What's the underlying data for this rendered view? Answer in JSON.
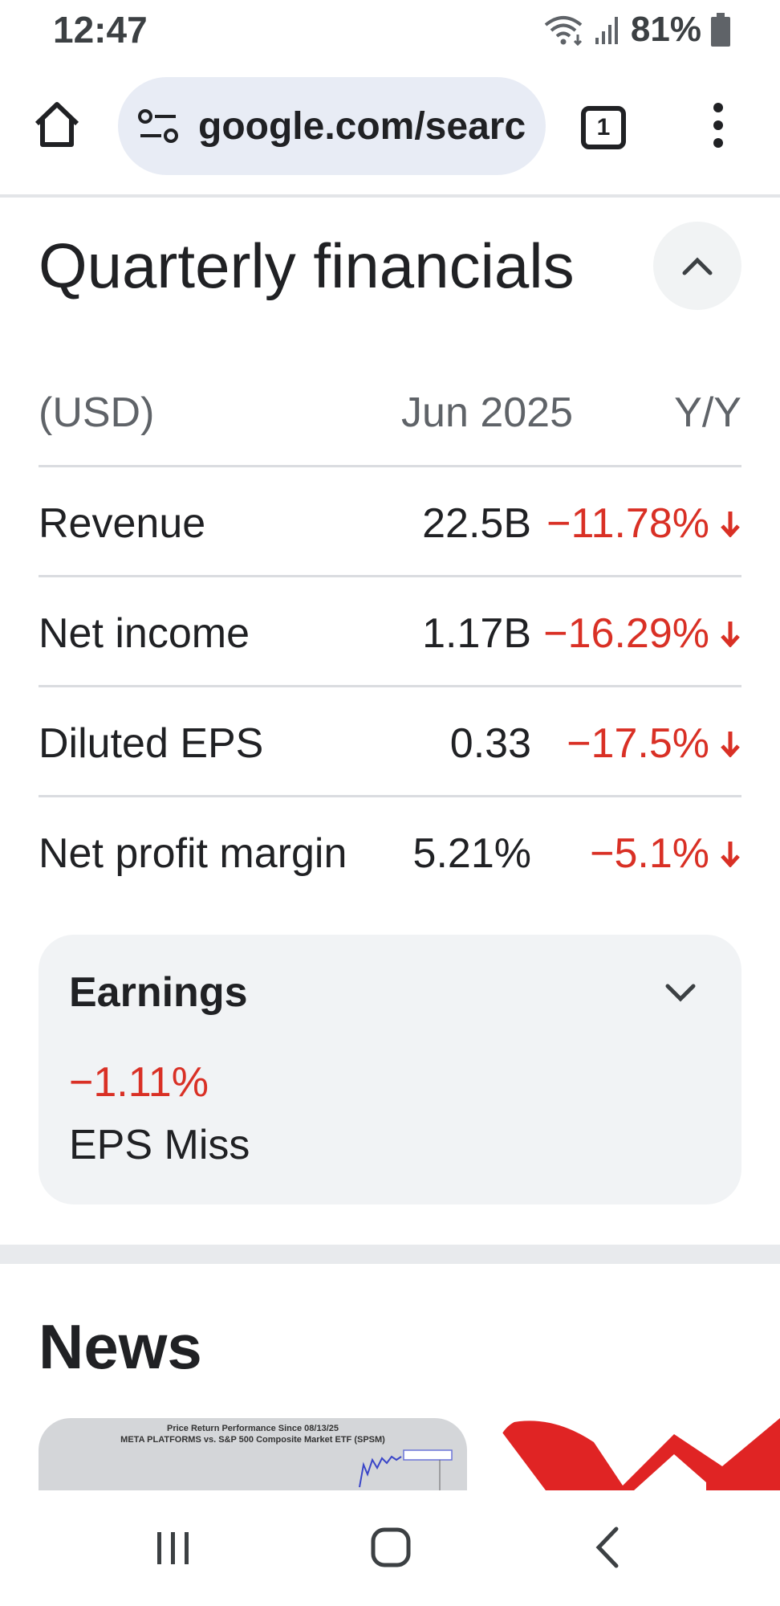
{
  "status_bar": {
    "time": "12:47",
    "battery_percent": "81%",
    "icons": [
      "wifi-icon",
      "signal-icon",
      "battery-icon"
    ]
  },
  "browser": {
    "url": "google.com/search",
    "tab_count": "1",
    "icons": [
      "home-icon",
      "site-info-icon",
      "tabs-icon",
      "more-vert-icon"
    ]
  },
  "financials": {
    "title": "Quarterly financials",
    "header": {
      "unit": "(USD)",
      "period": "Jun 2025",
      "change": "Y/Y"
    },
    "rows": [
      {
        "label": "Revenue",
        "value": "22.5B",
        "change": "−11.78%"
      },
      {
        "label": "Net income",
        "value": "1.17B",
        "change": "−16.29%"
      },
      {
        "label": "Diluted EPS",
        "value": "0.33",
        "change": "−17.5%"
      },
      {
        "label": "Net profit margin",
        "value": "5.21%",
        "change": "−5.1%"
      }
    ],
    "colors": {
      "negative": "#d93025"
    }
  },
  "earnings": {
    "title": "Earnings",
    "change": "−1.11%",
    "status": "EPS Miss"
  },
  "news": {
    "title": "News",
    "cards": [
      {
        "caption_line1": "Price Return Performance Since 08/13/25",
        "caption_line2": "META PLATFORMS vs. S&P 500 Composite Market ETF (SPSM)"
      }
    ]
  }
}
